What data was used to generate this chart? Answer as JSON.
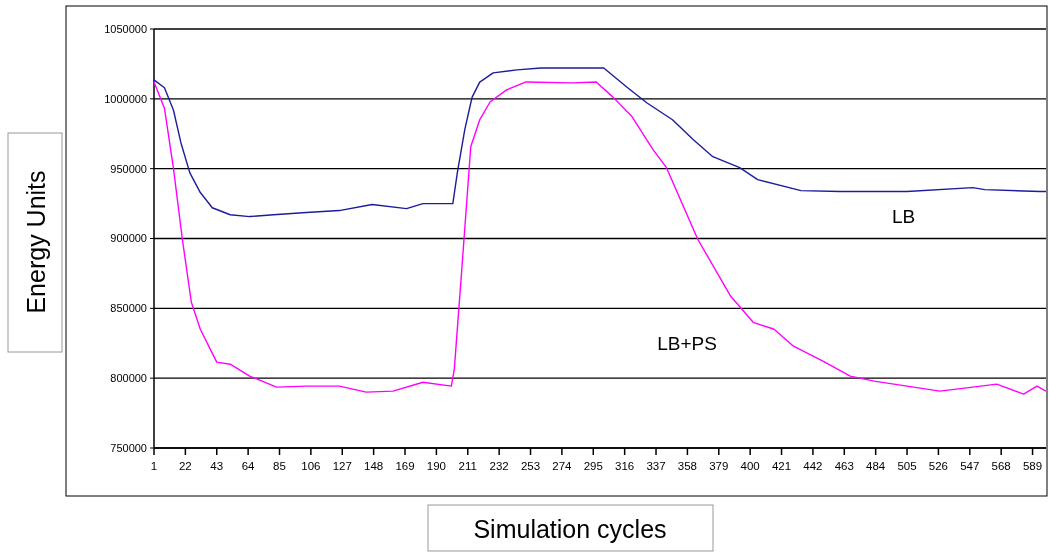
{
  "chart_data": {
    "type": "line",
    "xlabel": "Simulation cycles",
    "ylabel": "Energy Units",
    "xlim": [
      1,
      598
    ],
    "xticks": [
      1,
      22,
      43,
      64,
      85,
      106,
      127,
      148,
      169,
      190,
      211,
      232,
      253,
      274,
      295,
      316,
      337,
      358,
      379,
      400,
      421,
      442,
      463,
      484,
      505,
      526,
      547,
      568,
      589
    ],
    "ylim": [
      750000,
      1050000
    ],
    "yticks": [
      750000,
      800000,
      850000,
      900000,
      950000,
      1000000,
      1050000
    ],
    "grid": "y",
    "marker": "none",
    "series": [
      {
        "name": "LB",
        "color": "#1c1c9c",
        "x": [
          1,
          8,
          14,
          19,
          25,
          32,
          40,
          52,
          65,
          81,
          103,
          125,
          147,
          170,
          181,
          201,
          204,
          209,
          213,
          214,
          219,
          228,
          244,
          260,
          302,
          318,
          331,
          348,
          362,
          375,
          393,
          405,
          434,
          460,
          505,
          549,
          557,
          594,
          598
        ],
        "values": [
          1013600,
          1007900,
          992000,
          968600,
          947000,
          932900,
          922000,
          917000,
          915700,
          917000,
          918600,
          920000,
          924300,
          921400,
          925000,
          925000,
          947000,
          977900,
          997000,
          1001400,
          1012000,
          1018600,
          1020700,
          1022100,
          1022100,
          1007900,
          997000,
          985000,
          970700,
          958600,
          950700,
          942200,
          934300,
          933600,
          933600,
          936400,
          935000,
          933600,
          933600
        ]
      },
      {
        "name": "LB+PS",
        "color": "#ff00ff",
        "x": [
          1,
          8,
          14,
          20,
          26,
          32,
          43,
          52,
          65,
          83,
          103,
          125,
          143,
          161,
          181,
          200,
          202,
          207,
          213,
          219,
          226,
          237,
          250,
          281,
          297,
          308,
          321,
          335,
          344,
          365,
          387,
          402,
          416,
          429,
          449,
          467,
          483,
          505,
          527,
          549,
          565,
          583,
          592,
          598
        ],
        "values": [
          1012100,
          993300,
          950400,
          899300,
          854300,
          835000,
          811500,
          810000,
          801500,
          793600,
          794300,
          794300,
          790000,
          790700,
          797100,
          794300,
          806500,
          877900,
          965700,
          985000,
          997900,
          1006400,
          1012100,
          1011400,
          1012100,
          1001400,
          987100,
          963600,
          950700,
          899300,
          858600,
          840000,
          835000,
          822900,
          812100,
          801500,
          797900,
          794300,
          790700,
          793600,
          795700,
          788600,
          794300,
          790700
        ]
      }
    ]
  }
}
